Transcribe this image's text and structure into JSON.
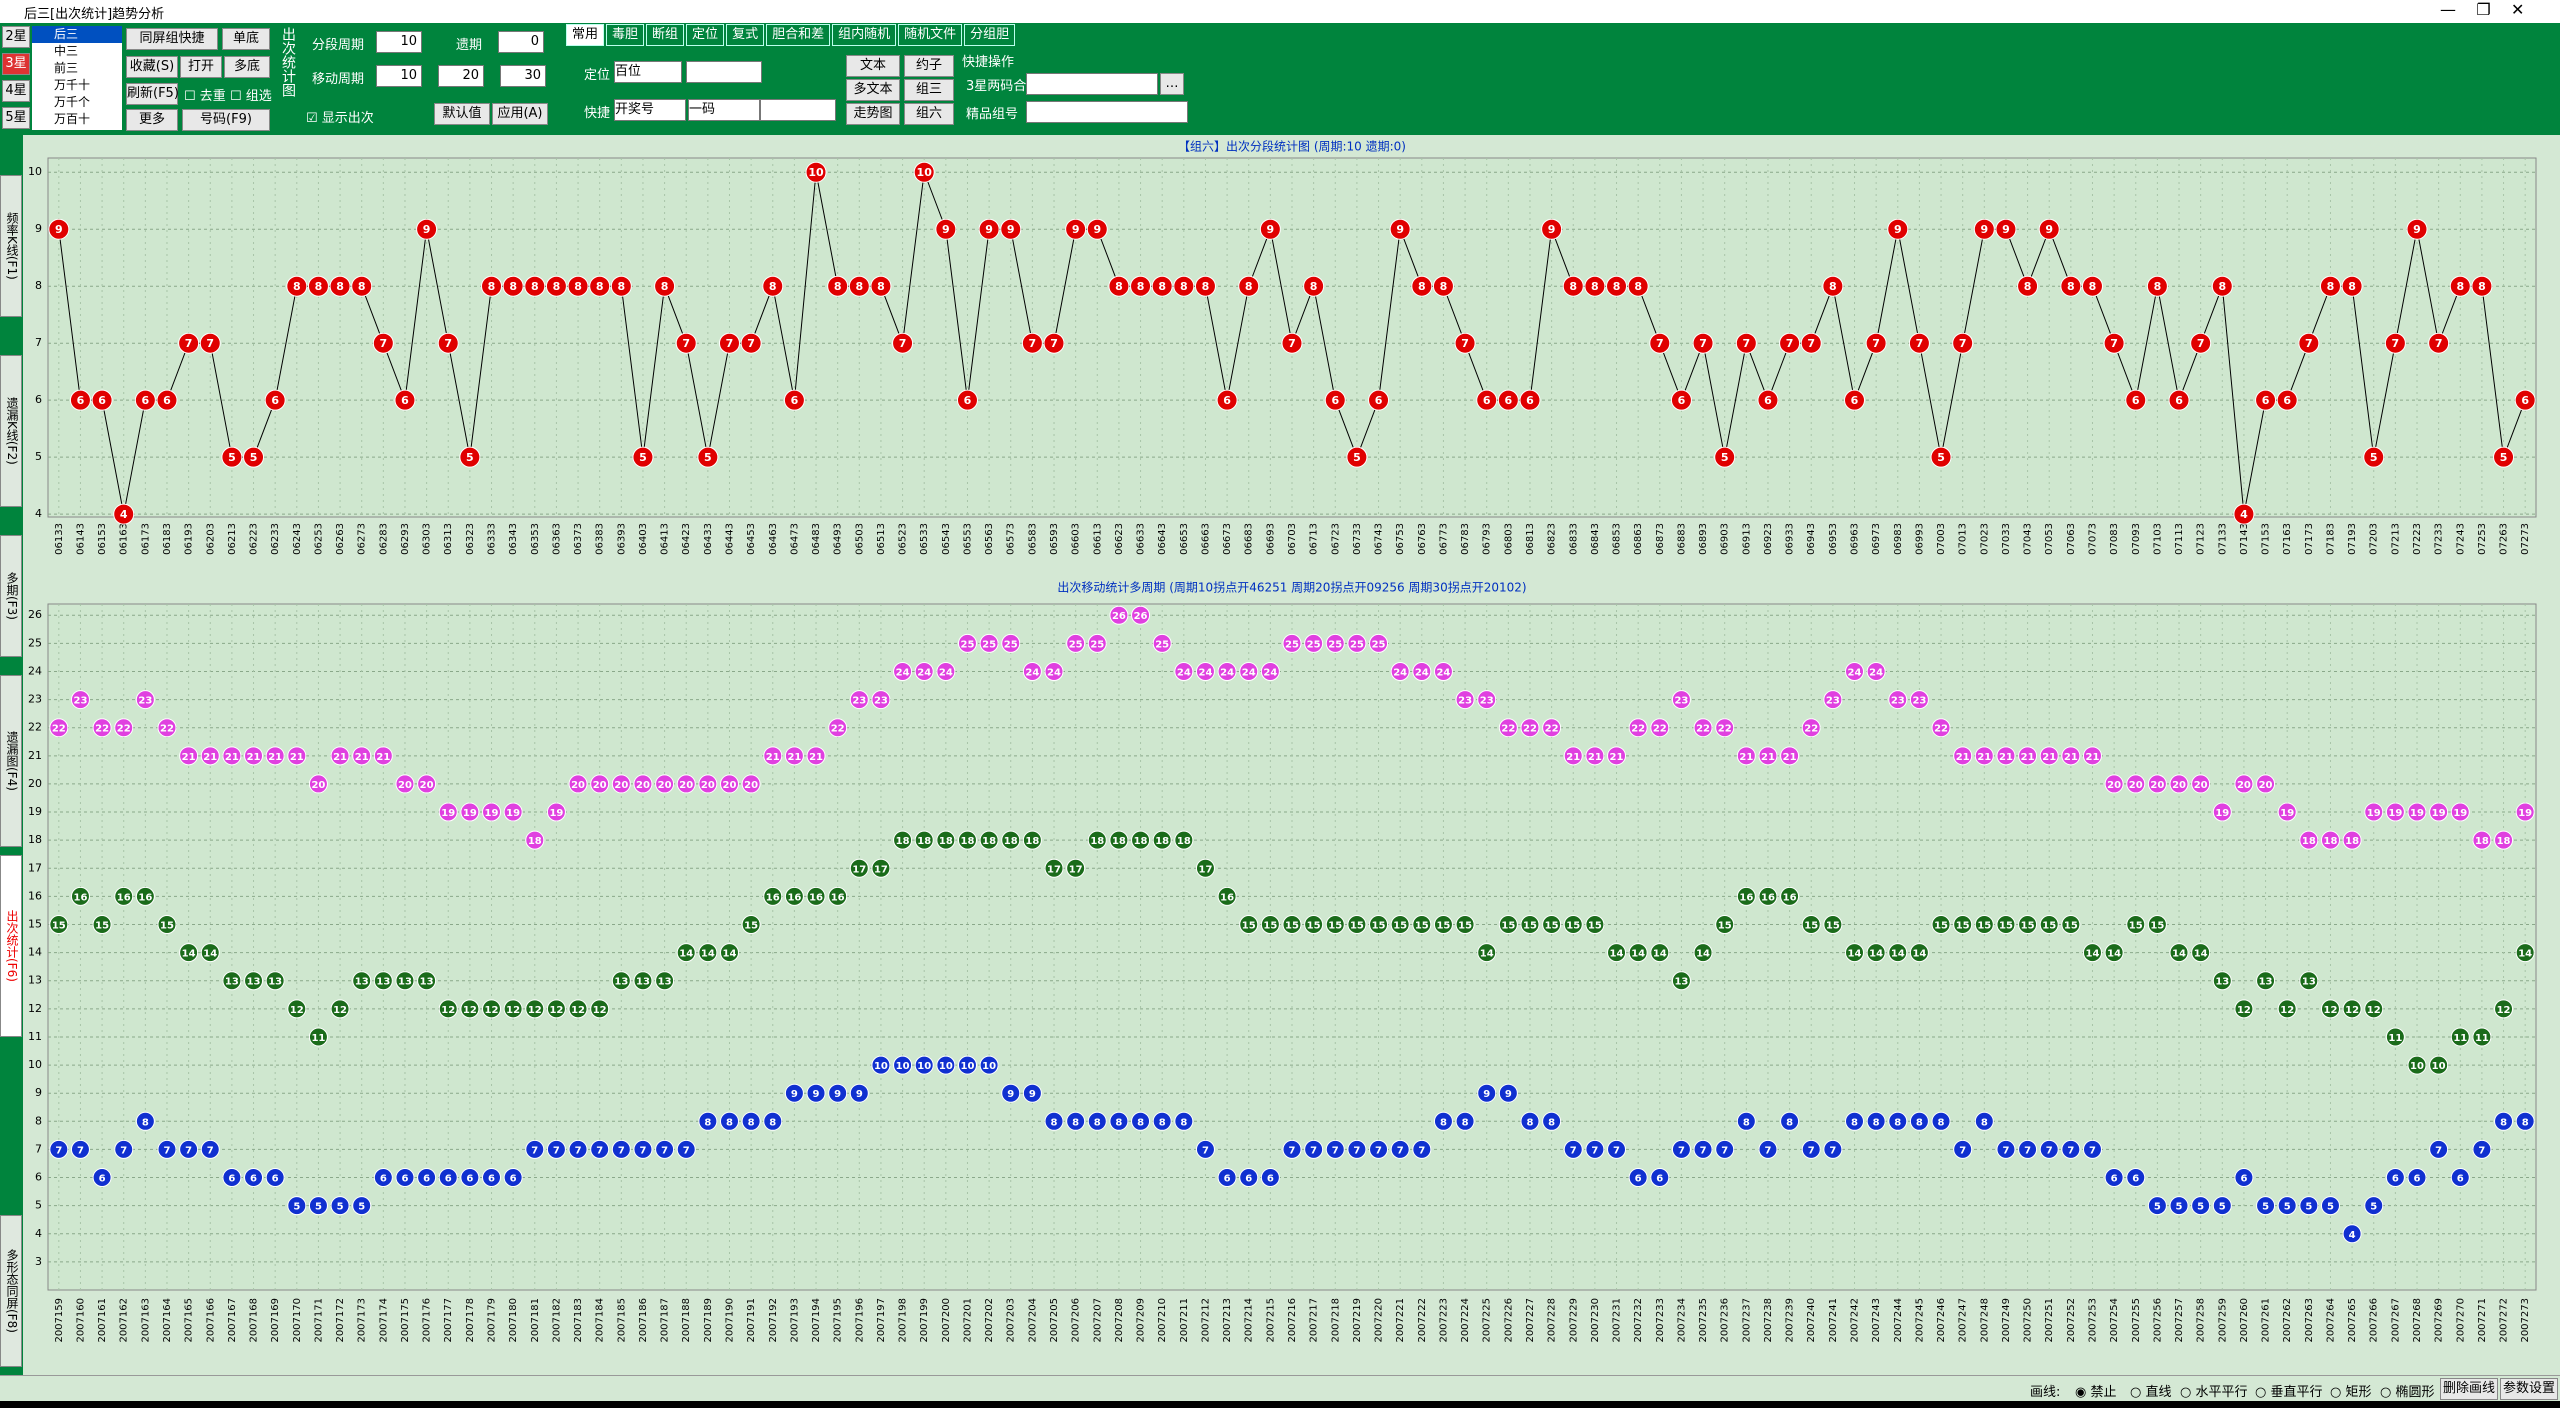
{
  "window": {
    "title": "后三[出次统计]趋势分析"
  },
  "toolbar": {
    "star_tabs": [
      "2星",
      "3星",
      "4星",
      "5星"
    ],
    "positions": [
      "后三",
      "中三",
      "前三",
      "万千十",
      "万千个",
      "万百十"
    ],
    "buttons": [
      "同屏组快捷",
      "单底",
      "收藏(S)",
      "打开",
      "多底",
      "刷新(F5)",
      "更多",
      "号码(F9)"
    ],
    "checks": [
      "去重",
      "组选"
    ],
    "panel": "出次统计图",
    "seg_label": "分段周期",
    "seg": "10",
    "miss_label": "遗期",
    "miss": "0",
    "move_label": "移动周期",
    "move": [
      "10",
      "20",
      "30"
    ],
    "show": "显示出次",
    "default": "默认值",
    "apply": "应用(A)",
    "tabs": [
      "常用",
      "毒胆",
      "断组",
      "定位",
      "复式",
      "胆合和差",
      "组内随机",
      "随机文件",
      "分组胆"
    ],
    "pos_label": "定位",
    "pos": "百位",
    "quick_label": "快捷",
    "quick": "开奖号",
    "one": "一码",
    "right_buttons": [
      "文本",
      "约子",
      "多文本",
      "组三",
      "走势图",
      "组六"
    ],
    "quick_ops": "快捷操作",
    "pair": "3星两码合",
    "fine": "精品组号"
  },
  "side_tabs": [
    "频率K线(F1)",
    "遗漏K线(F2)",
    "多期(F3)",
    "遗漏图(F4)",
    "出次统计(F6)",
    "多形态同屏(F8)"
  ],
  "status": {
    "label": "画线:",
    "options": [
      "禁止",
      "直线",
      "水平平行",
      "垂直平行",
      "矩形",
      "椭圆形"
    ],
    "buttons": [
      "删除画线",
      "参数设置"
    ]
  },
  "chart_data": [
    {
      "type": "line",
      "title": "【组六】出次分段统计图 (周期:10 遗期:0)",
      "color": "#e00000",
      "ylim": [
        3.95,
        10.25
      ],
      "yticks": [
        4,
        5,
        6,
        7,
        8,
        9,
        10
      ],
      "grid": true,
      "categories": [
        "06133",
        "06143",
        "06153",
        "06163",
        "06173",
        "06183",
        "06193",
        "06203",
        "06213",
        "06223",
        "06233",
        "06243",
        "06253",
        "06263",
        "06273",
        "06283",
        "06293",
        "06303",
        "06313",
        "06323",
        "06333",
        "06343",
        "06353",
        "06363",
        "06373",
        "06383",
        "06393",
        "06403",
        "06413",
        "06423",
        "06433",
        "06443",
        "06453",
        "06463",
        "06473",
        "06483",
        "06493",
        "06503",
        "06513",
        "06523",
        "06533",
        "06543",
        "06553",
        "06563",
        "06573",
        "06583",
        "06593",
        "06603",
        "06613",
        "06623",
        "06633",
        "06643",
        "06653",
        "06663",
        "06673",
        "06683",
        "06693",
        "06703",
        "06713",
        "06723",
        "06733",
        "06743",
        "06753",
        "06763",
        "06773",
        "06783",
        "06793",
        "06803",
        "06813",
        "06823",
        "06833",
        "06843",
        "06853",
        "06863",
        "06873",
        "06883",
        "06893",
        "06903",
        "06913",
        "06923",
        "06933",
        "06943",
        "06953",
        "06963",
        "06973",
        "06983",
        "06993",
        "07003",
        "07013",
        "07023",
        "07033",
        "07043",
        "07053",
        "07063",
        "07073",
        "07083",
        "07093",
        "07103",
        "07113",
        "07123",
        "07133",
        "07143",
        "07153",
        "07163",
        "07173",
        "07183",
        "07193",
        "07203",
        "07213",
        "07223",
        "07233",
        "07243",
        "07253",
        "07263",
        "07273"
      ],
      "values": [
        9,
        6,
        6,
        4,
        6,
        6,
        7,
        7,
        5,
        5,
        6,
        8,
        8,
        8,
        8,
        7,
        6,
        9,
        7,
        5,
        8,
        8,
        8,
        8,
        8,
        8,
        8,
        5,
        8,
        7,
        5,
        7,
        7,
        8,
        6,
        10,
        8,
        8,
        8,
        7,
        10,
        9,
        6,
        9,
        9,
        7,
        7,
        9,
        9,
        8,
        8,
        8,
        8,
        8,
        6,
        8,
        9,
        7,
        8,
        6,
        5,
        6,
        9,
        8,
        8,
        7,
        6,
        6,
        6,
        9,
        8,
        8,
        8,
        8,
        7,
        6,
        7,
        5,
        7,
        6,
        7,
        7,
        8,
        6,
        7,
        9,
        7,
        5,
        7,
        9,
        9,
        8,
        9,
        8,
        8,
        7,
        6,
        8,
        6,
        7,
        8,
        4,
        6,
        6,
        7,
        8,
        8,
        5,
        7,
        9,
        7,
        8,
        8,
        5,
        6
      ]
    },
    {
      "type": "multiline",
      "title": "出次移动统计多周期 (周期10拐点开46251 周期20拐点开09256 周期30拐点开20102)",
      "ylim": [
        2,
        26.4
      ],
      "yticks": [
        3,
        4,
        5,
        6,
        7,
        8,
        9,
        10,
        11,
        12,
        13,
        14,
        15,
        16,
        17,
        18,
        19,
        20,
        21,
        22,
        23,
        24,
        25,
        26
      ],
      "grid": true,
      "categories": [
        "2007159",
        "2007160",
        "2007161",
        "2007162",
        "2007163",
        "2007164",
        "2007165",
        "2007166",
        "2007167",
        "2007168",
        "2007169",
        "2007170",
        "2007171",
        "2007172",
        "2007173",
        "2007174",
        "2007175",
        "2007176",
        "2007177",
        "2007178",
        "2007179",
        "2007180",
        "2007181",
        "2007182",
        "2007183",
        "2007184",
        "2007185",
        "2007186",
        "2007187",
        "2007188",
        "2007189",
        "2007190",
        "2007191",
        "2007192",
        "2007193",
        "2007194",
        "2007195",
        "2007196",
        "2007197",
        "2007198",
        "2007199",
        "2007200",
        "2007201",
        "2007202",
        "2007203",
        "2007204",
        "2007205",
        "2007206",
        "2007207",
        "2007208",
        "2007209",
        "2007210",
        "2007211",
        "2007212",
        "2007213",
        "2007214",
        "2007215",
        "2007216",
        "2007217",
        "2007218",
        "2007219",
        "2007220",
        "2007221",
        "2007222",
        "2007223",
        "2007224",
        "2007225",
        "2007226",
        "2007227",
        "2007228",
        "2007229",
        "2007230",
        "2007231",
        "2007232",
        "2007233",
        "2007234",
        "2007235",
        "2007236",
        "2007237",
        "2007238",
        "2007239",
        "2007240",
        "2007241",
        "2007242",
        "2007243",
        "2007244",
        "2007245",
        "2007246",
        "2007247",
        "2007248",
        "2007249",
        "2007250",
        "2007251",
        "2007252",
        "2007253",
        "2007254",
        "2007255",
        "2007256",
        "2007257",
        "2007258",
        "2007259",
        "2007260",
        "2007261",
        "2007262",
        "2007263",
        "2007264",
        "2007265",
        "2007266",
        "2007267",
        "2007268",
        "2007269",
        "2007270",
        "2007271",
        "2007272",
        "2007273"
      ],
      "series": [
        {
          "color": "#e040e0",
          "values": [
            22,
            23,
            22,
            22,
            23,
            22,
            21,
            21,
            21,
            21,
            21,
            21,
            20,
            21,
            21,
            21,
            20,
            20,
            19,
            19,
            19,
            19,
            18,
            19,
            20,
            20,
            20,
            20,
            20,
            20,
            20,
            20,
            20,
            21,
            21,
            21,
            22,
            23,
            23,
            24,
            24,
            24,
            25,
            25,
            25,
            24,
            24,
            25,
            25,
            26,
            26,
            25,
            24,
            24,
            24,
            24,
            24,
            25,
            25,
            25,
            25,
            25,
            24,
            24,
            24,
            23,
            23,
            22,
            22,
            22,
            21,
            21,
            21,
            22,
            22,
            23,
            22,
            22,
            21,
            21,
            21,
            22,
            23,
            24,
            24,
            23,
            23,
            22,
            21,
            21,
            21,
            21,
            21,
            21,
            21,
            20,
            20,
            20,
            20,
            20,
            19,
            20,
            20,
            19,
            18,
            18,
            18,
            19,
            19,
            19,
            19,
            19,
            18,
            18,
            19
          ]
        },
        {
          "color": "#1a6b1a",
          "values": [
            15,
            16,
            15,
            16,
            16,
            15,
            14,
            14,
            13,
            13,
            13,
            12,
            11,
            12,
            13,
            13,
            13,
            13,
            12,
            12,
            12,
            12,
            12,
            12,
            12,
            12,
            13,
            13,
            13,
            14,
            14,
            14,
            15,
            16,
            16,
            16,
            16,
            17,
            17,
            18,
            18,
            18,
            18,
            18,
            18,
            18,
            17,
            17,
            18,
            18,
            18,
            18,
            18,
            17,
            16,
            15,
            15,
            15,
            15,
            15,
            15,
            15,
            15,
            15,
            15,
            15,
            14,
            15,
            15,
            15,
            15,
            15,
            14,
            14,
            14,
            13,
            14,
            15,
            16,
            16,
            16,
            15,
            15,
            14,
            14,
            14,
            14,
            15,
            15,
            15,
            15,
            15,
            15,
            15,
            14,
            14,
            15,
            15,
            14,
            14,
            13,
            12,
            13,
            12,
            13,
            12,
            12,
            12,
            11,
            10,
            10,
            11,
            11,
            12,
            14
          ]
        },
        {
          "color": "#1030d0",
          "values": [
            7,
            7,
            6,
            7,
            8,
            7,
            7,
            7,
            6,
            6,
            6,
            5,
            5,
            5,
            5,
            6,
            6,
            6,
            6,
            6,
            6,
            6,
            7,
            7,
            7,
            7,
            7,
            7,
            7,
            7,
            8,
            8,
            8,
            8,
            9,
            9,
            9,
            9,
            10,
            10,
            10,
            10,
            10,
            10,
            9,
            9,
            8,
            8,
            8,
            8,
            8,
            8,
            8,
            7,
            6,
            6,
            6,
            7,
            7,
            7,
            7,
            7,
            7,
            7,
            8,
            8,
            9,
            9,
            8,
            8,
            7,
            7,
            7,
            6,
            6,
            7,
            7,
            7,
            8,
            7,
            8,
            7,
            7,
            8,
            8,
            8,
            8,
            8,
            7,
            8,
            7,
            7,
            7,
            7,
            7,
            6,
            6,
            5,
            5,
            5,
            5,
            6,
            5,
            5,
            5,
            5,
            4,
            5,
            6,
            6,
            7,
            6,
            7,
            8,
            8
          ]
        }
      ]
    }
  ]
}
